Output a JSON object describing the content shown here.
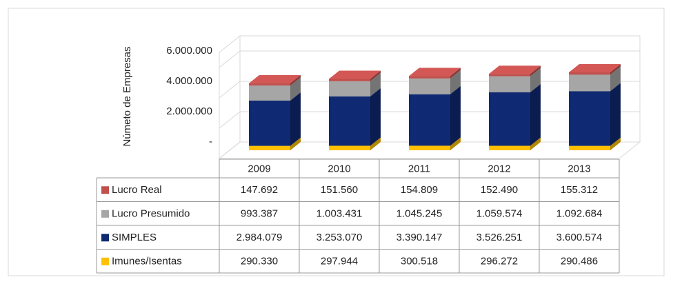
{
  "chart_data": {
    "type": "bar3d_stacked_table",
    "y_label": "Númeto  de Empresas",
    "categories": [
      "2009",
      "2010",
      "2011",
      "2012",
      "2013"
    ],
    "series": [
      {
        "name": "Lucro Real",
        "color": "#c0504d",
        "values": [
          147692,
          151560,
          154809,
          152490,
          155312
        ],
        "value_labels": [
          "147.692",
          "151.560",
          "154.809",
          "152.490",
          "155.312"
        ]
      },
      {
        "name": "Lucro Presumido",
        "color": "#a6a6a6",
        "values": [
          993387,
          1003431,
          1045245,
          1059574,
          1092684
        ],
        "value_labels": [
          "993.387",
          "1.003.431",
          "1.045.245",
          "1.059.574",
          "1.092.684"
        ]
      },
      {
        "name": "SIMPLES",
        "color": "#0f2a72",
        "values": [
          2984079,
          3253070,
          3390147,
          3526251,
          3600574
        ],
        "value_labels": [
          "2.984.079",
          "3.253.070",
          "3.390.147",
          "3.526.251",
          "3.600.574"
        ]
      },
      {
        "name": "Imunes/Isentas",
        "color": "#ffc000",
        "values": [
          290330,
          297944,
          300518,
          296272,
          290486
        ],
        "value_labels": [
          "290.330",
          "297.944",
          "300.518",
          "296.272",
          "290.486"
        ]
      }
    ],
    "ylim": [
      0,
      7000000
    ],
    "yticks": [
      {
        "value": 0,
        "label": "-"
      },
      {
        "value": 2000000,
        "label": "2.000.000"
      },
      {
        "value": 4000000,
        "label": "4.000.000"
      },
      {
        "value": 6000000,
        "label": "6.000.000"
      }
    ],
    "grid": true
  }
}
